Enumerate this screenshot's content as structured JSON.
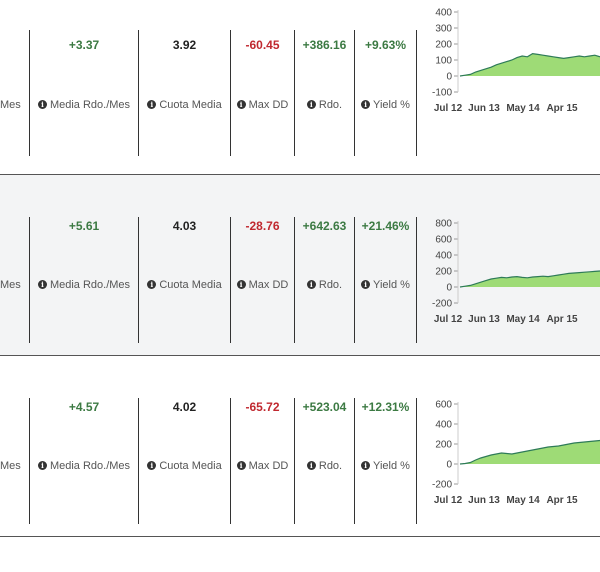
{
  "labels": {
    "mes": "Mes",
    "media": "Media Rdo./Mes",
    "cuota": "Cuota Media",
    "maxdd": "Max DD",
    "rdo": "Rdo.",
    "yield": "Yield %"
  },
  "info_icon": "info-circle-icon",
  "rows": [
    {
      "media": "+3.37",
      "cuota": "3.92",
      "maxdd": "-60.45",
      "rdo": "+386.16",
      "yield": "+9.63%"
    },
    {
      "media": "+5.61",
      "cuota": "4.03",
      "maxdd": "-28.76",
      "rdo": "+642.63",
      "yield": "+21.46%"
    },
    {
      "media": "+4.57",
      "cuota": "4.02",
      "maxdd": "-65.72",
      "rdo": "+523.04",
      "yield": "+12.31%"
    }
  ],
  "chart_data": [
    {
      "type": "area",
      "x_ticks": [
        "Jul 12",
        "Jun 13",
        "May 14",
        "Apr 15"
      ],
      "y_ticks": [
        "400",
        "300",
        "200",
        "100",
        "0",
        "-100"
      ],
      "ylim": [
        -100,
        400
      ],
      "values": [
        0,
        5,
        10,
        25,
        35,
        45,
        55,
        70,
        80,
        90,
        100,
        115,
        125,
        120,
        140,
        135,
        130,
        125,
        120,
        115,
        110,
        115,
        120,
        125,
        120,
        125,
        130,
        120
      ]
    },
    {
      "type": "area",
      "x_ticks": [
        "Jul 12",
        "Jun 13",
        "May 14",
        "Apr 15"
      ],
      "y_ticks": [
        "800",
        "600",
        "400",
        "200",
        "0",
        "-200"
      ],
      "ylim": [
        -200,
        800
      ],
      "values": [
        0,
        10,
        20,
        40,
        60,
        80,
        100,
        110,
        120,
        115,
        125,
        130,
        120,
        115,
        125,
        130,
        135,
        130,
        140,
        150,
        160,
        170,
        175,
        180,
        185,
        190,
        195,
        200
      ]
    },
    {
      "type": "area",
      "x_ticks": [
        "Jul 12",
        "Jun 13",
        "May 14",
        "Apr 15"
      ],
      "y_ticks": [
        "600",
        "400",
        "200",
        "0",
        "-200"
      ],
      "ylim": [
        -200,
        600
      ],
      "values": [
        0,
        5,
        15,
        40,
        60,
        75,
        90,
        100,
        110,
        105,
        100,
        110,
        120,
        130,
        140,
        150,
        160,
        170,
        175,
        180,
        190,
        200,
        210,
        215,
        220,
        225,
        230,
        235
      ]
    }
  ],
  "colors": {
    "positive": "#3c7a43",
    "negative": "#c0282f",
    "area_fill": "#9edb76",
    "area_line": "#2e7b58"
  }
}
